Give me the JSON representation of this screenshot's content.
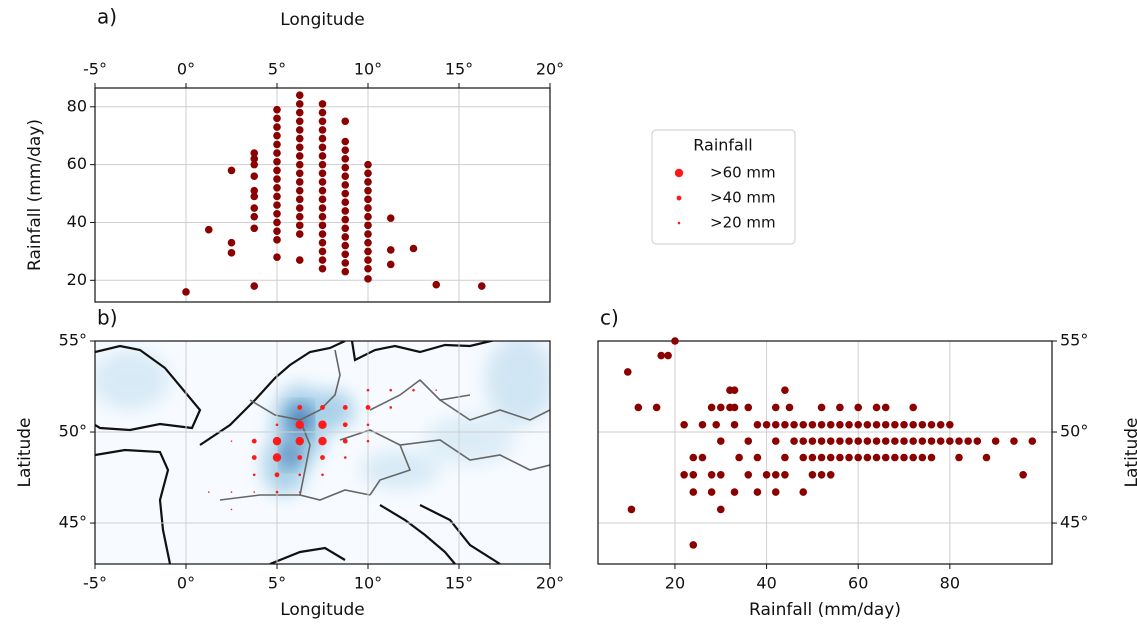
{
  "chart_data": [
    {
      "type": "scatter",
      "panel_label": "a)",
      "xlabel": "Longitude",
      "ylabel": "Rainfall (mm/day)",
      "xaxis_position": "top",
      "xlim": [
        -5,
        20
      ],
      "ylim": [
        12.5,
        86.5
      ],
      "xticks": [
        {
          "value": -5,
          "label": "-5°"
        },
        {
          "value": 0,
          "label": "0°"
        },
        {
          "value": 5,
          "label": "5°"
        },
        {
          "value": 10,
          "label": "10°"
        },
        {
          "value": 15,
          "label": "15°"
        },
        {
          "value": 20,
          "label": "20°"
        }
      ],
      "yticks": [
        20,
        40,
        60,
        80
      ],
      "grid": true,
      "color": "#8b0000",
      "points": [
        [
          0,
          16
        ],
        [
          1.25,
          37.5
        ],
        [
          2.5,
          58
        ],
        [
          2.5,
          33
        ],
        [
          2.5,
          29.5
        ],
        [
          3.75,
          64
        ],
        [
          3.75,
          62
        ],
        [
          3.75,
          60
        ],
        [
          3.75,
          56
        ],
        [
          3.75,
          51
        ],
        [
          3.75,
          49
        ],
        [
          3.75,
          45
        ],
        [
          3.75,
          42
        ],
        [
          3.75,
          38
        ],
        [
          3.75,
          18
        ],
        [
          5,
          79
        ],
        [
          5,
          76
        ],
        [
          5,
          73
        ],
        [
          5,
          70
        ],
        [
          5,
          67
        ],
        [
          5,
          64
        ],
        [
          5,
          61
        ],
        [
          5,
          58
        ],
        [
          5,
          55
        ],
        [
          5,
          52
        ],
        [
          5,
          49
        ],
        [
          5,
          46
        ],
        [
          5,
          43
        ],
        [
          5,
          40
        ],
        [
          5,
          37
        ],
        [
          5,
          34
        ],
        [
          5,
          28
        ],
        [
          6.25,
          84
        ],
        [
          6.25,
          81
        ],
        [
          6.25,
          78
        ],
        [
          6.25,
          75
        ],
        [
          6.25,
          72
        ],
        [
          6.25,
          69
        ],
        [
          6.25,
          66
        ],
        [
          6.25,
          63
        ],
        [
          6.25,
          60
        ],
        [
          6.25,
          57
        ],
        [
          6.25,
          54
        ],
        [
          6.25,
          51
        ],
        [
          6.25,
          48
        ],
        [
          6.25,
          45
        ],
        [
          6.25,
          42
        ],
        [
          6.25,
          39
        ],
        [
          6.25,
          36
        ],
        [
          6.25,
          27
        ],
        [
          7.5,
          81
        ],
        [
          7.5,
          78
        ],
        [
          7.5,
          75
        ],
        [
          7.5,
          72
        ],
        [
          7.5,
          69
        ],
        [
          7.5,
          66
        ],
        [
          7.5,
          63
        ],
        [
          7.5,
          60
        ],
        [
          7.5,
          57
        ],
        [
          7.5,
          54
        ],
        [
          7.5,
          51
        ],
        [
          7.5,
          48
        ],
        [
          7.5,
          45
        ],
        [
          7.5,
          42
        ],
        [
          7.5,
          39
        ],
        [
          7.5,
          36
        ],
        [
          7.5,
          33
        ],
        [
          7.5,
          30
        ],
        [
          7.5,
          27
        ],
        [
          7.5,
          24
        ],
        [
          8.75,
          75
        ],
        [
          8.75,
          68
        ],
        [
          8.75,
          65
        ],
        [
          8.75,
          62
        ],
        [
          8.75,
          59
        ],
        [
          8.75,
          56
        ],
        [
          8.75,
          53
        ],
        [
          8.75,
          50
        ],
        [
          8.75,
          47
        ],
        [
          8.75,
          44
        ],
        [
          8.75,
          41
        ],
        [
          8.75,
          38
        ],
        [
          8.75,
          35
        ],
        [
          8.75,
          32
        ],
        [
          8.75,
          29
        ],
        [
          8.75,
          26
        ],
        [
          8.75,
          23
        ],
        [
          10,
          60
        ],
        [
          10,
          57
        ],
        [
          10,
          54
        ],
        [
          10,
          51
        ],
        [
          10,
          48
        ],
        [
          10,
          45
        ],
        [
          10,
          42
        ],
        [
          10,
          39
        ],
        [
          10,
          36
        ],
        [
          10,
          33
        ],
        [
          10,
          30
        ],
        [
          10,
          27
        ],
        [
          10,
          24
        ],
        [
          10,
          20.5
        ],
        [
          11.25,
          41.5
        ],
        [
          11.25,
          30.5
        ],
        [
          11.25,
          25.5
        ],
        [
          12.5,
          31
        ],
        [
          13.75,
          18.5
        ],
        [
          16.25,
          18
        ]
      ]
    },
    {
      "type": "map",
      "panel_label": "b)",
      "xlabel": "Longitude",
      "ylabel": "Latitude",
      "xlim": [
        -5,
        20
      ],
      "ylim": [
        42.75,
        55
      ],
      "xticks": [
        {
          "value": -5,
          "label": "-5°"
        },
        {
          "value": 0,
          "label": "0°"
        },
        {
          "value": 5,
          "label": "5°"
        },
        {
          "value": 10,
          "label": "10°"
        },
        {
          "value": 15,
          "label": "15°"
        },
        {
          "value": 20,
          "label": "20°"
        }
      ],
      "yticks": [
        {
          "value": 45,
          "label": "45°"
        },
        {
          "value": 50,
          "label": "50°"
        },
        {
          "value": 55,
          "label": "55°"
        }
      ],
      "grid": true,
      "color": "#ff1a1a",
      "legend": {
        "title": "Rainfall",
        "entries": [
          {
            "value": 60,
            "label": ">60 mm"
          },
          {
            "value": 40,
            "label": ">40 mm"
          },
          {
            "value": 20,
            "label": ">20 mm"
          }
        ]
      },
      "points": [
        [
          10,
          52.3,
          30
        ],
        [
          11.25,
          52.3,
          25
        ],
        [
          12.5,
          52.3,
          22
        ],
        [
          13.75,
          52.3,
          18
        ],
        [
          6.25,
          51.35,
          50
        ],
        [
          7.5,
          51.35,
          50
        ],
        [
          8.75,
          51.35,
          50
        ],
        [
          10,
          51.35,
          50
        ],
        [
          11.25,
          51.35,
          30
        ],
        [
          5,
          50.4,
          30
        ],
        [
          6.25,
          50.4,
          70
        ],
        [
          7.5,
          50.4,
          70
        ],
        [
          8.75,
          50.4,
          50
        ],
        [
          10,
          50.4,
          30
        ],
        [
          2.5,
          49.5,
          18
        ],
        [
          3.75,
          49.5,
          50
        ],
        [
          5,
          49.5,
          70
        ],
        [
          6.25,
          49.5,
          70
        ],
        [
          7.5,
          49.5,
          70
        ],
        [
          8.75,
          49.5,
          50
        ],
        [
          10,
          49.5,
          30
        ],
        [
          3.75,
          48.6,
          50
        ],
        [
          5,
          48.6,
          70
        ],
        [
          6.25,
          48.6,
          50
        ],
        [
          7.5,
          48.6,
          50
        ],
        [
          8.75,
          48.6,
          30
        ],
        [
          3.75,
          47.65,
          30
        ],
        [
          5,
          47.65,
          50
        ],
        [
          6.25,
          47.65,
          30
        ],
        [
          7.5,
          47.65,
          30
        ],
        [
          1.25,
          46.7,
          18
        ],
        [
          2.5,
          46.7,
          18
        ],
        [
          3.75,
          46.7,
          18
        ],
        [
          5,
          46.7,
          30
        ],
        [
          6.25,
          46.7,
          18
        ],
        [
          2.5,
          45.75,
          18
        ]
      ]
    },
    {
      "type": "scatter",
      "panel_label": "c)",
      "xlabel": "Rainfall (mm/day)",
      "ylabel": "Latitude",
      "yaxis_position": "right",
      "xlim": [
        3.2,
        102.3
      ],
      "ylim": [
        42.75,
        55
      ],
      "xticks": [
        20,
        40,
        60,
        80
      ],
      "yticks": [
        {
          "value": 45,
          "label": "45°"
        },
        {
          "value": 50,
          "label": "50°"
        },
        {
          "value": 55,
          "label": "55°"
        }
      ],
      "grid": true,
      "color": "#8b0000",
      "points": [
        [
          9.7,
          53.3
        ],
        [
          12,
          51.35
        ],
        [
          17,
          54.2
        ],
        [
          18.5,
          54.2
        ],
        [
          20,
          55
        ],
        [
          10.5,
          45.75
        ],
        [
          16,
          51.35
        ],
        [
          28,
          51.35
        ],
        [
          30,
          51.35
        ],
        [
          32,
          51.35
        ],
        [
          33,
          51.35
        ],
        [
          36,
          51.35
        ],
        [
          42,
          51.35
        ],
        [
          45,
          51.35
        ],
        [
          52,
          51.35
        ],
        [
          56,
          51.35
        ],
        [
          60,
          51.35
        ],
        [
          64,
          51.35
        ],
        [
          66,
          51.35
        ],
        [
          72,
          51.35
        ],
        [
          32,
          52.3
        ],
        [
          33,
          52.3
        ],
        [
          44,
          52.3
        ],
        [
          22,
          50.4
        ],
        [
          26,
          50.4
        ],
        [
          29,
          50.4
        ],
        [
          33,
          50.4
        ],
        [
          38,
          50.4
        ],
        [
          40,
          50.4
        ],
        [
          42,
          50.4
        ],
        [
          44,
          50.4
        ],
        [
          46,
          50.4
        ],
        [
          48,
          50.4
        ],
        [
          50,
          50.4
        ],
        [
          52,
          50.4
        ],
        [
          54,
          50.4
        ],
        [
          56,
          50.4
        ],
        [
          58,
          50.4
        ],
        [
          60,
          50.4
        ],
        [
          62,
          50.4
        ],
        [
          64,
          50.4
        ],
        [
          66,
          50.4
        ],
        [
          68,
          50.4
        ],
        [
          70,
          50.4
        ],
        [
          72,
          50.4
        ],
        [
          74,
          50.4
        ],
        [
          76,
          50.4
        ],
        [
          78,
          50.4
        ],
        [
          80,
          50.4
        ],
        [
          30,
          49.5
        ],
        [
          36,
          49.5
        ],
        [
          42,
          49.5
        ],
        [
          46,
          49.5
        ],
        [
          48,
          49.5
        ],
        [
          50,
          49.5
        ],
        [
          52,
          49.5
        ],
        [
          54,
          49.5
        ],
        [
          56,
          49.5
        ],
        [
          58,
          49.5
        ],
        [
          60,
          49.5
        ],
        [
          62,
          49.5
        ],
        [
          64,
          49.5
        ],
        [
          66,
          49.5
        ],
        [
          68,
          49.5
        ],
        [
          70,
          49.5
        ],
        [
          72,
          49.5
        ],
        [
          74,
          49.5
        ],
        [
          76,
          49.5
        ],
        [
          78,
          49.5
        ],
        [
          80,
          49.5
        ],
        [
          82,
          49.5
        ],
        [
          84,
          49.5
        ],
        [
          86,
          49.5
        ],
        [
          90,
          49.5
        ],
        [
          94,
          49.5
        ],
        [
          98,
          49.5
        ],
        [
          24,
          48.6
        ],
        [
          26,
          48.6
        ],
        [
          34,
          48.6
        ],
        [
          38,
          48.6
        ],
        [
          44,
          48.6
        ],
        [
          48,
          48.6
        ],
        [
          50,
          48.6
        ],
        [
          52,
          48.6
        ],
        [
          54,
          48.6
        ],
        [
          56,
          48.6
        ],
        [
          58,
          48.6
        ],
        [
          60,
          48.6
        ],
        [
          62,
          48.6
        ],
        [
          64,
          48.6
        ],
        [
          66,
          48.6
        ],
        [
          68,
          48.6
        ],
        [
          70,
          48.6
        ],
        [
          72,
          48.6
        ],
        [
          74,
          48.6
        ],
        [
          76,
          48.6
        ],
        [
          82,
          48.6
        ],
        [
          88,
          48.6
        ],
        [
          22,
          47.65
        ],
        [
          24,
          47.65
        ],
        [
          28,
          47.65
        ],
        [
          30,
          47.65
        ],
        [
          36,
          47.65
        ],
        [
          40,
          47.65
        ],
        [
          42,
          47.65
        ],
        [
          44,
          47.65
        ],
        [
          50,
          47.65
        ],
        [
          52,
          47.65
        ],
        [
          54,
          47.65
        ],
        [
          96,
          47.65
        ],
        [
          24,
          46.7
        ],
        [
          28,
          46.7
        ],
        [
          33,
          46.7
        ],
        [
          38,
          46.7
        ],
        [
          42,
          46.7
        ],
        [
          48,
          46.7
        ],
        [
          30,
          45.75
        ],
        [
          24,
          43.8
        ]
      ]
    }
  ]
}
